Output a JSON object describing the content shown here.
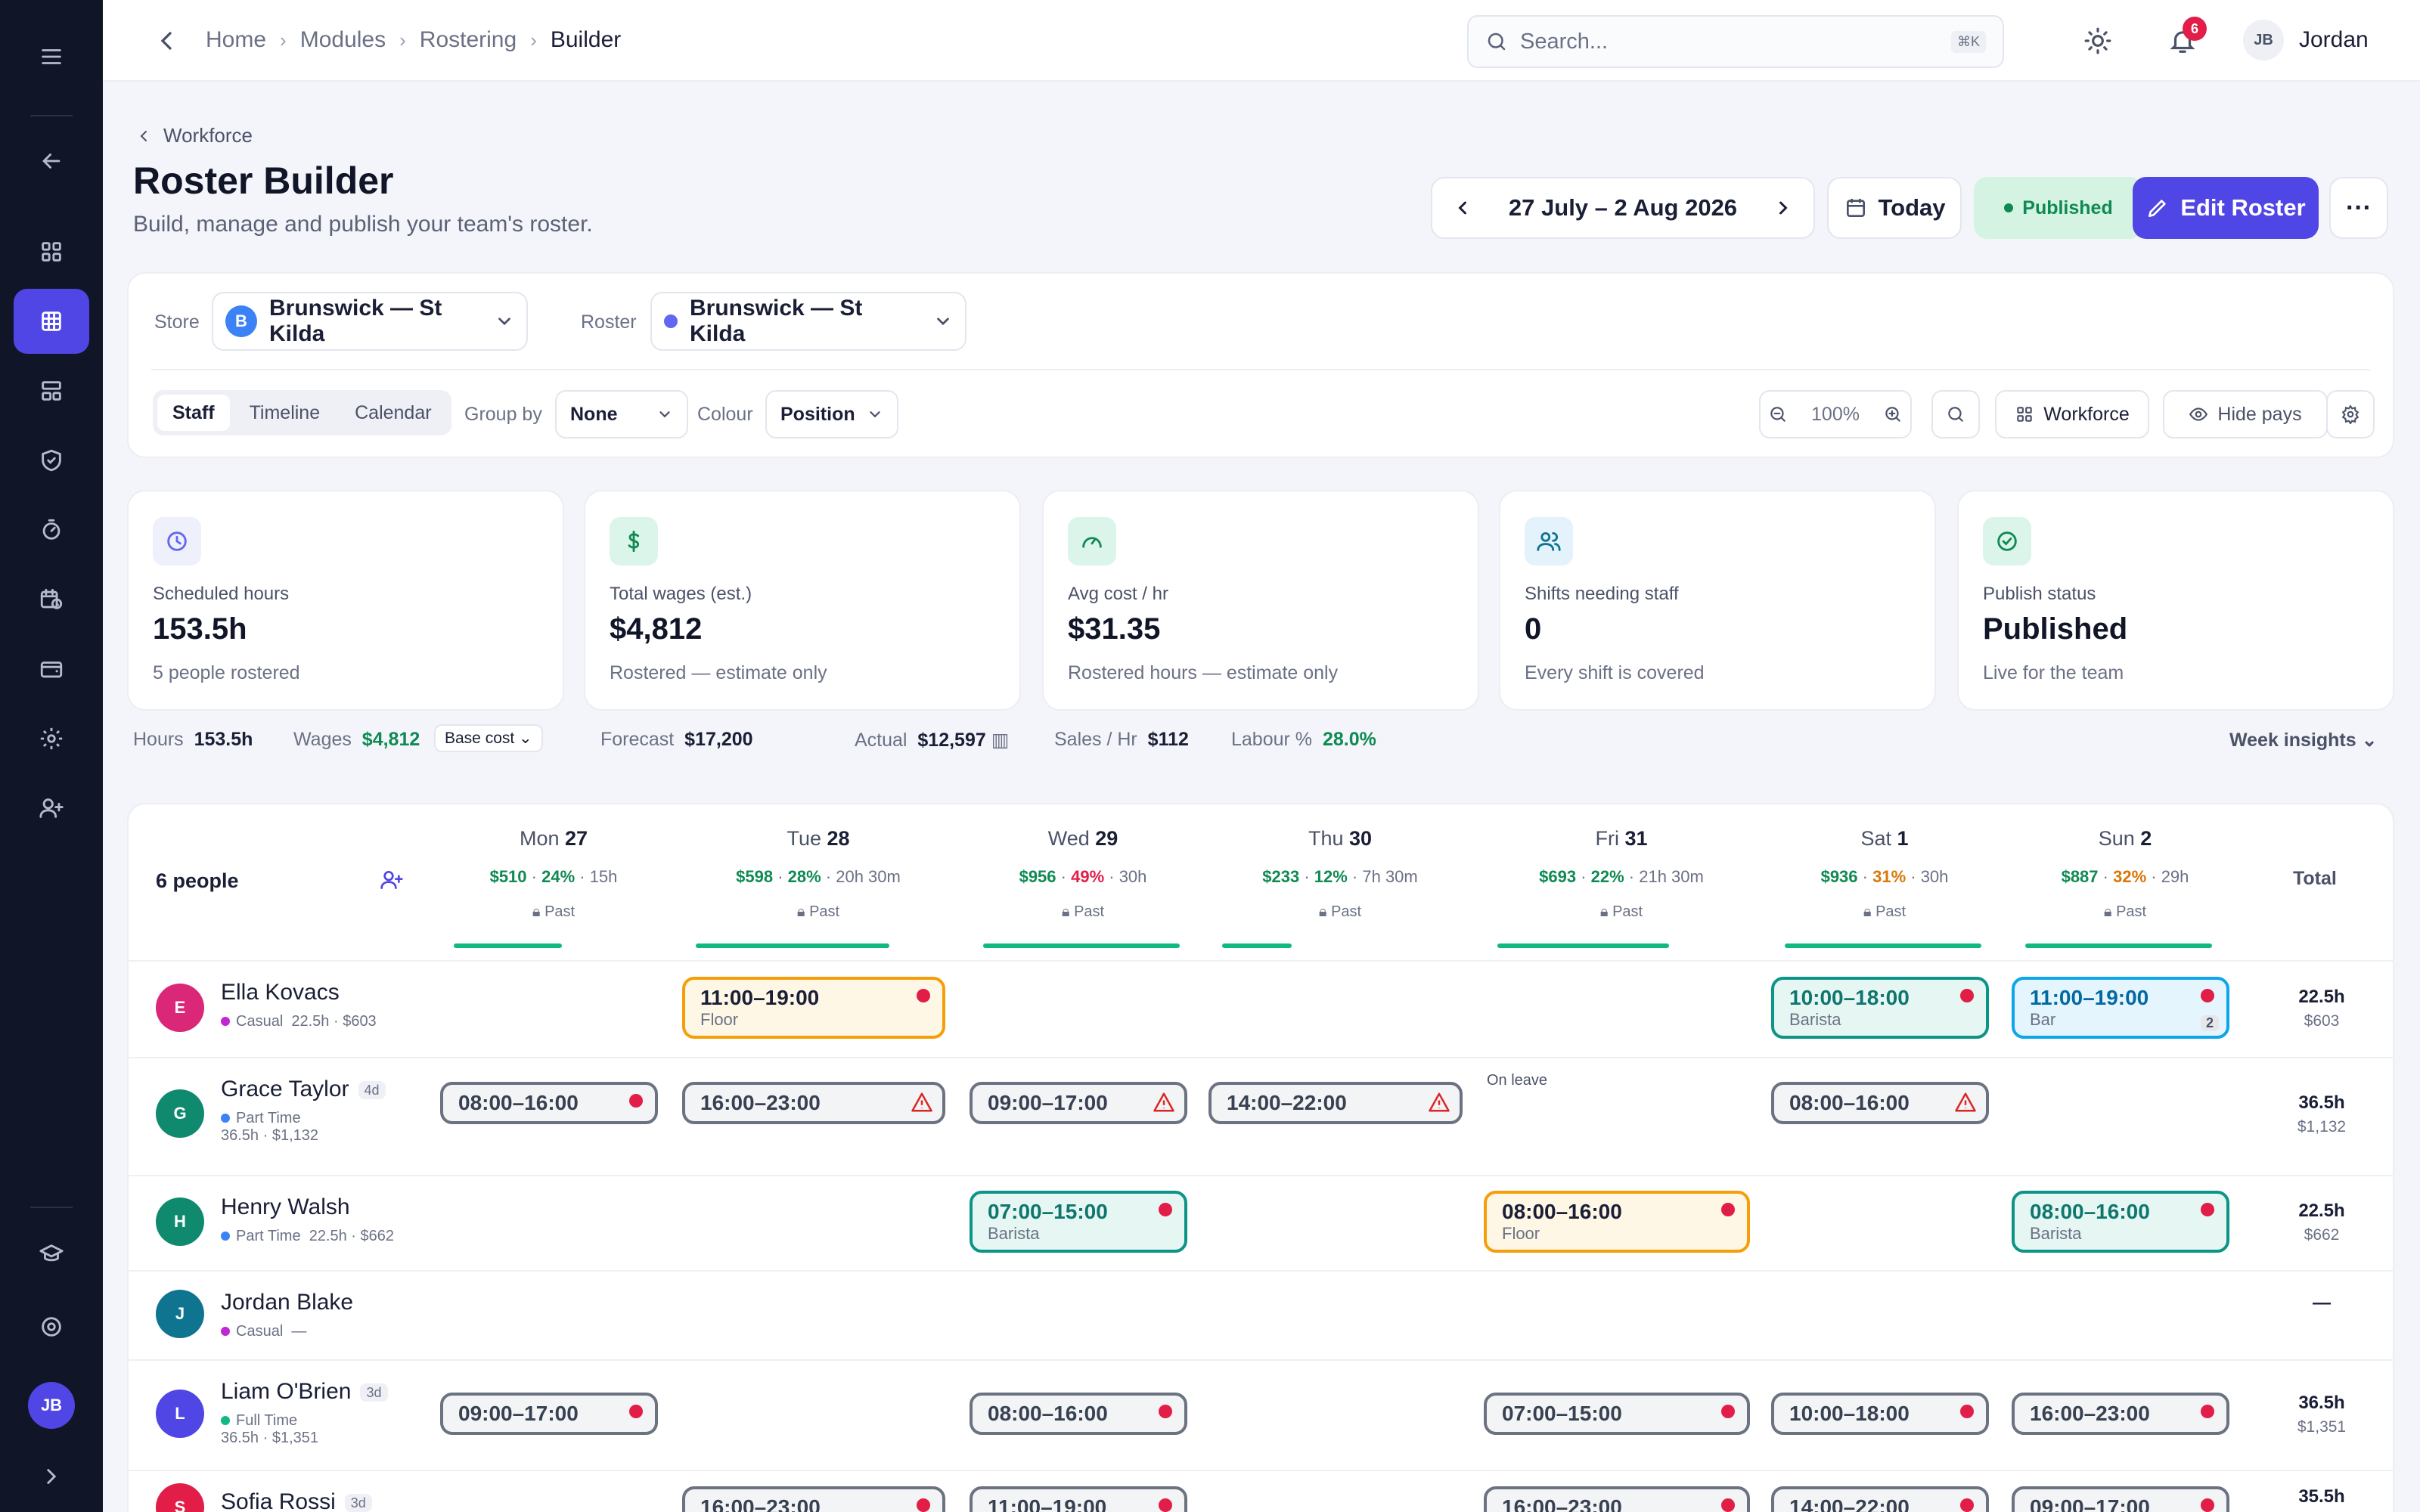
{
  "topbar": {
    "breadcrumbs": [
      "Home",
      "Modules",
      "Rostering",
      "Builder"
    ],
    "search_placeholder": "Search...",
    "search_shortcut": "⌘K",
    "notifications": "6",
    "user_initials": "JB",
    "user_name": "Jordan"
  },
  "rail": {
    "avatar": "JB"
  },
  "page": {
    "back": "Workforce",
    "title": "Roster Builder",
    "subtitle": "Build, manage and publish your team's roster.",
    "date_range": "27 July – 2 Aug 2026",
    "today": "Today",
    "status": "Published",
    "edit": "Edit Roster",
    "more": "···"
  },
  "filters": {
    "store_label": "Store",
    "store_badge": "B",
    "store": "Brunswick — St Kilda",
    "roster_label": "Roster",
    "roster": "Brunswick — St Kilda",
    "views": [
      "Staff",
      "Timeline",
      "Calendar"
    ],
    "group_label": "Group by",
    "group": "None",
    "colour_label": "Colour",
    "colour": "Position",
    "zoom": "100%",
    "workforce": "Workforce",
    "hide_pays": "Hide pays"
  },
  "kpis": [
    {
      "label": "Scheduled hours",
      "value": "153.5h",
      "sub": "5 people rostered",
      "icon": "clock-icon"
    },
    {
      "label": "Total wages (est.)",
      "value": "$4,812",
      "sub": "Rostered — estimate only",
      "icon": "dollar-icon"
    },
    {
      "label": "Avg cost / hr",
      "value": "$31.35",
      "sub": "Rostered hours — estimate only",
      "icon": "gauge-icon"
    },
    {
      "label": "Shifts needing staff",
      "value": "0",
      "sub": "Every shift is covered",
      "icon": "users-icon"
    },
    {
      "label": "Publish status",
      "value": "Published",
      "sub": "Live for the team",
      "icon": "check-circle-icon"
    }
  ],
  "stats": {
    "hours_label": "Hours",
    "hours": "153.5h",
    "wages_label": "Wages",
    "wages": "$4,812",
    "base": "Base cost",
    "forecast_label": "Forecast",
    "forecast": "$17,200",
    "actual_label": "Actual",
    "actual": "$12,597",
    "sales_label": "Sales / Hr",
    "sales": "$112",
    "labour_label": "Labour %",
    "labour": "28.0%",
    "insights": "Week insights"
  },
  "grid": {
    "people_count": "6 people",
    "total_label": "Total",
    "past": "Past",
    "days": [
      {
        "d": "Mon",
        "n": "27",
        "w": "$510",
        "p": "24%",
        "pc": "#0f8a52",
        "h": "15h",
        "prog": 0.55
      },
      {
        "d": "Tue",
        "n": "28",
        "w": "$598",
        "p": "28%",
        "pc": "#0f8a52",
        "h": "20h 30m",
        "prog": 0.8
      },
      {
        "d": "Wed",
        "n": "29",
        "w": "$956",
        "p": "49%",
        "pc": "#e11d48",
        "h": "30h",
        "prog": 1
      },
      {
        "d": "Thu",
        "n": "30",
        "w": "$233",
        "p": "12%",
        "pc": "#0f8a52",
        "h": "7h 30m",
        "prog": 0.3
      },
      {
        "d": "Fri",
        "n": "31",
        "w": "$693",
        "p": "22%",
        "pc": "#0f8a52",
        "h": "21h 30m",
        "prog": 0.7
      },
      {
        "d": "Sat",
        "n": "1",
        "w": "$936",
        "p": "31%",
        "pc": "#d97706",
        "h": "30h",
        "prog": 1
      },
      {
        "d": "Sun",
        "n": "2",
        "w": "$887",
        "p": "32%",
        "pc": "#d97706",
        "h": "29h",
        "prog": 0.95
      }
    ],
    "people": [
      {
        "initial": "E",
        "name": "Ella Kovacs",
        "tag": "",
        "type": "Casual",
        "meta": "22.5h · $603",
        "color": "#db2777",
        "tdot": "#c026d3",
        "total": "22.5h",
        "total_pay": "$603"
      },
      {
        "initial": "G",
        "name": "Grace Taylor",
        "tag": "4d",
        "type": "Part Time",
        "meta": "36.5h · $1,132",
        "color": "#0f8a6e",
        "tdot": "#3b82f6",
        "total": "36.5h",
        "total_pay": "$1,132"
      },
      {
        "initial": "H",
        "name": "Henry Walsh",
        "tag": "",
        "type": "Part Time",
        "meta": "22.5h · $662",
        "color": "#0f8a6e",
        "tdot": "#3b82f6",
        "total": "22.5h",
        "total_pay": "$662"
      },
      {
        "initial": "J",
        "name": "Jordan Blake",
        "tag": "",
        "type": "Casual",
        "meta": "—",
        "color": "#0e7490",
        "tdot": "#c026d3",
        "total": "—",
        "total_pay": ""
      },
      {
        "initial": "L",
        "name": "Liam O'Brien",
        "tag": "3d",
        "type": "Full Time",
        "meta": "36.5h · $1,351",
        "color": "#4f46e5",
        "tdot": "#10b981",
        "total": "36.5h",
        "total_pay": "$1,351"
      },
      {
        "initial": "S",
        "name": "Sofia Rossi",
        "tag": "3d",
        "type": "",
        "meta": "",
        "color": "#e11d48",
        "tdot": "#c026d3",
        "total": "35.5h",
        "total_pay": ""
      }
    ],
    "on_leave": "On leave",
    "shifts": [
      {
        "row": 0,
        "day": 1,
        "time": "11:00–19:00",
        "role": "Floor",
        "style": "floor"
      },
      {
        "row": 0,
        "day": 5,
        "time": "10:00–18:00",
        "role": "Barista",
        "style": "barista"
      },
      {
        "row": 0,
        "day": 6,
        "time": "11:00–19:00",
        "role": "Bar",
        "style": "bar",
        "count": "2"
      },
      {
        "row": 1,
        "day": 0,
        "time": "08:00–16:00"
      },
      {
        "row": 1,
        "day": 1,
        "time": "16:00–23:00",
        "warn": true
      },
      {
        "row": 1,
        "day": 2,
        "time": "09:00–17:00",
        "warn": true
      },
      {
        "row": 1,
        "day": 3,
        "time": "14:00–22:00",
        "warn": true
      },
      {
        "row": 1,
        "day": 5,
        "time": "08:00–16:00",
        "warn": true
      },
      {
        "row": 2,
        "day": 2,
        "time": "07:00–15:00",
        "role": "Barista",
        "style": "barista"
      },
      {
        "row": 2,
        "day": 4,
        "time": "08:00–16:00",
        "role": "Floor",
        "style": "floor"
      },
      {
        "row": 2,
        "day": 6,
        "time": "08:00–16:00",
        "role": "Barista",
        "style": "barista"
      },
      {
        "row": 4,
        "day": 0,
        "time": "09:00–17:00"
      },
      {
        "row": 4,
        "day": 2,
        "time": "08:00–16:00"
      },
      {
        "row": 4,
        "day": 4,
        "time": "07:00–15:00"
      },
      {
        "row": 4,
        "day": 5,
        "time": "10:00–18:00"
      },
      {
        "row": 4,
        "day": 6,
        "time": "16:00–23:00"
      },
      {
        "row": 5,
        "day": 1,
        "time": "16:00–23:00"
      },
      {
        "row": 5,
        "day": 2,
        "time": "11:00–19:00"
      },
      {
        "row": 5,
        "day": 4,
        "time": "16:00–23:00"
      },
      {
        "row": 5,
        "day": 5,
        "time": "14:00–22:00"
      },
      {
        "row": 5,
        "day": 6,
        "time": "09:00–17:00"
      }
    ]
  }
}
